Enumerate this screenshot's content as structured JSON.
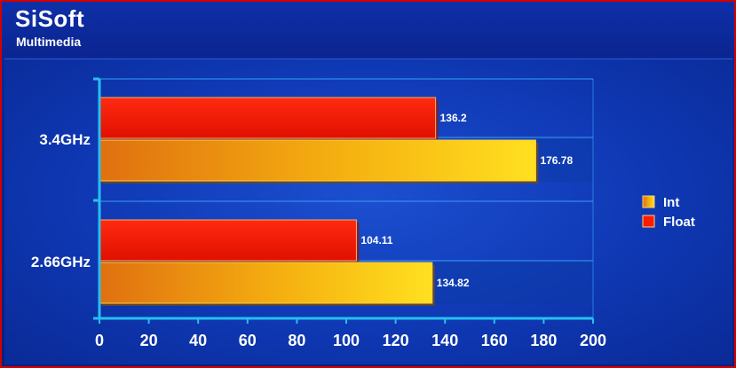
{
  "header": {
    "title": "SiSoft",
    "subtitle": "Multimedia"
  },
  "colors": {
    "int": "#f5a010",
    "float": "#ff1a00",
    "axis": "#26c0f0"
  },
  "chart_data": {
    "type": "bar",
    "orientation": "horizontal",
    "title": "SiSoft",
    "subtitle": "Multimedia",
    "categories": [
      "3.4GHz",
      "2.66GHz"
    ],
    "series": [
      {
        "name": "Float",
        "values": [
          136.2,
          104.11
        ],
        "labels": [
          "136.2",
          "104.11"
        ]
      },
      {
        "name": "Int",
        "values": [
          176.78,
          134.82
        ],
        "labels": [
          "176.78",
          "134.82"
        ]
      }
    ],
    "xlim": [
      0,
      200
    ],
    "xticks": [
      "0",
      "20",
      "40",
      "60",
      "80",
      "100",
      "120",
      "140",
      "160",
      "180",
      "200"
    ],
    "legend": {
      "position": "right",
      "entries": [
        "Int",
        "Float"
      ]
    },
    "grid": true
  }
}
